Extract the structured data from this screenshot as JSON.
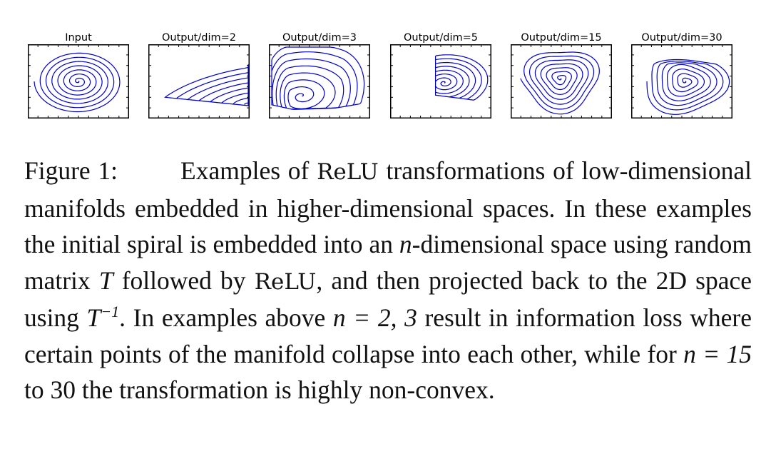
{
  "figure": {
    "panels": [
      {
        "title": "Input",
        "shape": "input"
      },
      {
        "title": "Output/dim=2",
        "shape": "dim2"
      },
      {
        "title": "Output/dim=3",
        "shape": "dim3"
      },
      {
        "title": "Output/dim=5",
        "shape": "dim5"
      },
      {
        "title": "Output/dim=15",
        "shape": "dim15"
      },
      {
        "title": "Output/dim=30",
        "shape": "dim30"
      }
    ],
    "curve_color": "#0000cc"
  },
  "caption": {
    "label": "Figure 1:",
    "t1": "Examples of ",
    "relu": "ReLU",
    "t2": " transformations of low-dimensional manifolds embedded in higher-dimensional spaces.  In these examples the initial spiral is embedded into an ",
    "n": "n",
    "t3": "-dimensional space using random matrix ",
    "T": "T",
    "t4": " followed by ",
    "relu2": "ReLU",
    "t5": ", and then projected back to the 2D space using ",
    "Tinv_base": "T",
    "Tinv_exp": "−1",
    "t6": ". In examples above ",
    "eq1": "n = 2, 3",
    "t7": " result in information loss where certain points of the manifold collapse into each other, while for ",
    "eq2": "n = 15",
    "t8": " to 30 the transformation is highly non-convex."
  }
}
